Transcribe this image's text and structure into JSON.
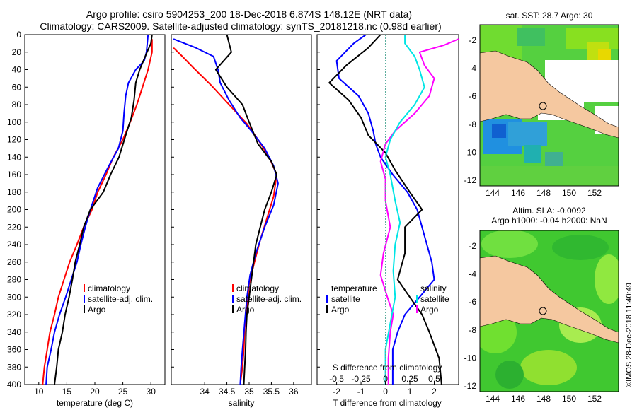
{
  "title": {
    "line1": "Argo profile: csiro 5904253_200 18-Dec-2018 6.874S 148.12E (NRT data)",
    "line2": "Climatology: CARS2009. Satellite-adjusted climatology: synTS_20181218.nc (0.98d earlier)"
  },
  "colors": {
    "climatology": "#ff0000",
    "satellite": "#0000ff",
    "argo": "#000000",
    "sat_salinity": "#ff00ff",
    "argo_salinity": "#00e5e5",
    "land": "#f5c8a0"
  },
  "depth_axis": {
    "ticks": [
      "0",
      "20",
      "40",
      "60",
      "80",
      "100",
      "120",
      "140",
      "160",
      "180",
      "200",
      "220",
      "240",
      "260",
      "280",
      "300",
      "320",
      "340",
      "360",
      "380",
      "400"
    ],
    "range": [
      0,
      400
    ]
  },
  "chart_data": [
    {
      "type": "line",
      "name": "temperature",
      "xlabel": "temperature (deg C)",
      "xlim": [
        7.5,
        32.5
      ],
      "xticks": [
        "10",
        "15",
        "20",
        "25",
        "30"
      ],
      "legend": {
        "climatology": "climatology",
        "satellite": "satellite-adj. clim.",
        "argo": "Argo"
      },
      "series": [
        {
          "name": "climatology",
          "color": "#ff0000",
          "points": [
            [
              30.2,
              5
            ],
            [
              30.2,
              20
            ],
            [
              29.5,
              40
            ],
            [
              28.5,
              60
            ],
            [
              27.5,
              80
            ],
            [
              26.3,
              100
            ],
            [
              25,
              120
            ],
            [
              23.3,
              140
            ],
            [
              22,
              160
            ],
            [
              20.5,
              180
            ],
            [
              19.5,
              200
            ],
            [
              18,
              220
            ],
            [
              16.8,
              240
            ],
            [
              15.5,
              260
            ],
            [
              14.5,
              280
            ],
            [
              13.5,
              300
            ],
            [
              12.8,
              320
            ],
            [
              12,
              340
            ],
            [
              11.5,
              360
            ],
            [
              11,
              380
            ],
            [
              10.7,
              400
            ]
          ]
        },
        {
          "name": "satellite",
          "color": "#0000ff",
          "points": [
            [
              29.5,
              0
            ],
            [
              29.2,
              20
            ],
            [
              28.8,
              30
            ],
            [
              27.3,
              40
            ],
            [
              26,
              55
            ],
            [
              25.5,
              70
            ],
            [
              25.2,
              90
            ],
            [
              25,
              110
            ],
            [
              24.2,
              130
            ],
            [
              22.5,
              150
            ],
            [
              20.5,
              175
            ],
            [
              19.2,
              200
            ],
            [
              18.3,
              220
            ],
            [
              17.5,
              240
            ],
            [
              16.8,
              260
            ],
            [
              15.8,
              280
            ],
            [
              14.8,
              300
            ],
            [
              13.7,
              320
            ],
            [
              12.8,
              340
            ],
            [
              12.2,
              360
            ],
            [
              11.5,
              380
            ],
            [
              11.3,
              400
            ]
          ]
        },
        {
          "name": "argo",
          "color": "#000000",
          "points": [
            [
              30.2,
              0
            ],
            [
              30,
              10
            ],
            [
              29.3,
              20
            ],
            [
              28,
              40
            ],
            [
              27.3,
              55
            ],
            [
              27,
              75
            ],
            [
              26.5,
              95
            ],
            [
              25.5,
              115
            ],
            [
              24.3,
              140
            ],
            [
              22.8,
              160
            ],
            [
              21.5,
              180
            ],
            [
              19.2,
              200
            ],
            [
              18,
              220
            ],
            [
              17.3,
              240
            ],
            [
              16.5,
              260
            ],
            [
              16,
              280
            ],
            [
              15.4,
              300
            ],
            [
              14.7,
              320
            ],
            [
              14.2,
              340
            ],
            [
              13.5,
              360
            ],
            [
              13.2,
              380
            ],
            [
              12.8,
              400
            ]
          ]
        }
      ]
    },
    {
      "type": "line",
      "name": "salinity",
      "xlabel": "salinity",
      "xlim": [
        33.25,
        36.4
      ],
      "xticks": [
        "34",
        "34.5",
        "35",
        "35.5",
        "36"
      ],
      "legend": {
        "climatology": "climatology",
        "satellite": "satellite-adj. clim.",
        "argo": "Argo"
      },
      "series": [
        {
          "name": "climatology",
          "color": "#ff0000",
          "points": [
            [
              33.3,
              15
            ],
            [
              33.5,
              25
            ],
            [
              33.75,
              38
            ],
            [
              34.15,
              58
            ],
            [
              34.55,
              80
            ],
            [
              34.95,
              102
            ],
            [
              35.2,
              120
            ],
            [
              35.45,
              140
            ],
            [
              35.62,
              160
            ],
            [
              35.55,
              185
            ],
            [
              35.4,
              210
            ],
            [
              35.25,
              235
            ],
            [
              35.12,
              260
            ],
            [
              35.0,
              285
            ],
            [
              34.95,
              310
            ],
            [
              34.9,
              335
            ],
            [
              34.88,
              360
            ],
            [
              34.85,
              380
            ],
            [
              34.8,
              400
            ]
          ]
        },
        {
          "name": "satellite",
          "color": "#0000ff",
          "points": [
            [
              33.3,
              5
            ],
            [
              33.8,
              15
            ],
            [
              34.2,
              25
            ],
            [
              34.3,
              40
            ],
            [
              34.35,
              55
            ],
            [
              34.55,
              75
            ],
            [
              34.8,
              95
            ],
            [
              35.05,
              110
            ],
            [
              35.35,
              130
            ],
            [
              35.55,
              150
            ],
            [
              35.65,
              170
            ],
            [
              35.55,
              195
            ],
            [
              35.35,
              220
            ],
            [
              35.15,
              250
            ],
            [
              35.02,
              275
            ],
            [
              34.95,
              300
            ],
            [
              34.9,
              330
            ],
            [
              34.85,
              360
            ],
            [
              34.82,
              380
            ],
            [
              34.8,
              400
            ]
          ]
        },
        {
          "name": "argo",
          "color": "#000000",
          "points": [
            [
              34.5,
              0
            ],
            [
              34.55,
              10
            ],
            [
              34.6,
              20
            ],
            [
              34.25,
              40
            ],
            [
              34.5,
              60
            ],
            [
              34.85,
              80
            ],
            [
              35.0,
              100
            ],
            [
              35.2,
              125
            ],
            [
              35.5,
              145
            ],
            [
              35.62,
              160
            ],
            [
              35.5,
              180
            ],
            [
              35.35,
              200
            ],
            [
              35.25,
              220
            ],
            [
              35.15,
              240
            ],
            [
              35.1,
              260
            ],
            [
              35.05,
              280
            ],
            [
              35.0,
              300
            ],
            [
              34.95,
              320
            ],
            [
              34.93,
              340
            ],
            [
              34.92,
              360
            ],
            [
              34.9,
              380
            ],
            [
              34.88,
              400
            ]
          ]
        }
      ]
    },
    {
      "type": "line",
      "name": "difference",
      "xlabel": "T difference from climatology",
      "xlabel_top": "S difference from climatology",
      "xlim": [
        -2.8,
        3.0
      ],
      "xticks": [
        "-2",
        "-1",
        "0",
        "1",
        "2"
      ],
      "xlim_top": [
        -0.7,
        0.75
      ],
      "xticks_top": [
        "-0.5",
        "-0.25",
        "0",
        "0.25",
        "0.5"
      ],
      "legend": {
        "temperature": "temperature",
        "satellite": "satellite",
        "argo": "Argo",
        "salinity": "salinity",
        "sat_salinity": "satellite",
        "argo_salinity": "Argo"
      },
      "series": [
        {
          "name": "T satellite",
          "color": "#0000ff",
          "points": [
            [
              -0.8,
              0
            ],
            [
              -1.3,
              10
            ],
            [
              -2.0,
              30
            ],
            [
              -1.9,
              50
            ],
            [
              -1.1,
              70
            ],
            [
              -0.7,
              90
            ],
            [
              -0.5,
              110
            ],
            [
              -0.4,
              125
            ],
            [
              -0.2,
              140
            ],
            [
              0.3,
              160
            ],
            [
              0.9,
              180
            ],
            [
              1.3,
              200
            ],
            [
              1.6,
              230
            ],
            [
              1.9,
              260
            ],
            [
              2.0,
              280
            ],
            [
              1.4,
              300
            ],
            [
              0.8,
              320
            ],
            [
              0.5,
              340
            ],
            [
              0.3,
              360
            ],
            [
              0.3,
              400
            ]
          ]
        },
        {
          "name": "T argo",
          "color": "#000000",
          "points": [
            [
              -0.2,
              0
            ],
            [
              -0.7,
              15
            ],
            [
              -1.6,
              35
            ],
            [
              -2.3,
              55
            ],
            [
              -1.5,
              75
            ],
            [
              -1.0,
              95
            ],
            [
              -0.7,
              115
            ],
            [
              0,
              135
            ],
            [
              0.4,
              155
            ],
            [
              1.0,
              180
            ],
            [
              1.5,
              200
            ],
            [
              0.8,
              220
            ],
            [
              0.8,
              250
            ],
            [
              0.5,
              280
            ],
            [
              1.0,
              300
            ],
            [
              1.5,
              320
            ],
            [
              1.8,
              340
            ],
            [
              2.2,
              370
            ],
            [
              2.3,
              400
            ]
          ]
        },
        {
          "name": "S satellite",
          "color": "#ff00ff",
          "points": [
            [
              0.75,
              5
            ],
            [
              0.6,
              12
            ],
            [
              0.35,
              20
            ],
            [
              0.4,
              35
            ],
            [
              0.5,
              50
            ],
            [
              0.45,
              70
            ],
            [
              0.3,
              90
            ],
            [
              0.1,
              110
            ],
            [
              0,
              125
            ],
            [
              -0.05,
              145
            ],
            [
              0,
              165
            ],
            [
              0,
              190
            ],
            [
              0.05,
              220
            ],
            [
              -0.02,
              250
            ],
            [
              -0.05,
              275
            ],
            [
              0.02,
              300
            ],
            [
              0.08,
              320
            ],
            [
              0.05,
              340
            ],
            [
              0.03,
              370
            ],
            [
              0.03,
              400
            ]
          ]
        },
        {
          "name": "S argo",
          "color": "#00e5e5",
          "points": [
            [
              0.2,
              0
            ],
            [
              0.2,
              10
            ],
            [
              0.3,
              25
            ],
            [
              0.35,
              40
            ],
            [
              0.4,
              60
            ],
            [
              0.3,
              80
            ],
            [
              0.15,
              100
            ],
            [
              0.05,
              120
            ],
            [
              0,
              140
            ],
            [
              0.05,
              160
            ],
            [
              0.1,
              190
            ],
            [
              0.15,
              215
            ],
            [
              0.1,
              240
            ],
            [
              0.08,
              270
            ],
            [
              0.1,
              300
            ],
            [
              0.05,
              330
            ],
            [
              0,
              360
            ],
            [
              0,
              400
            ]
          ]
        }
      ]
    }
  ],
  "maps": {
    "sst": {
      "title": "sat. SST: 28.7 Argo: 30",
      "xticks": [
        "144",
        "146",
        "148",
        "150",
        "152"
      ],
      "yticks": [
        "-2",
        "-4",
        "-6",
        "-8",
        "-10",
        "-12"
      ]
    },
    "sla": {
      "title1": "Altim. SLA: -0.0092",
      "title2": "Argo h1000: -0.04 h2000: NaN",
      "xticks": [
        "144",
        "146",
        "148",
        "150",
        "152"
      ],
      "yticks": [
        "-2",
        "-4",
        "-6",
        "-8",
        "-10",
        "-12"
      ]
    }
  },
  "credit": "©IMOS 28-Dec-2018 11:40:49"
}
